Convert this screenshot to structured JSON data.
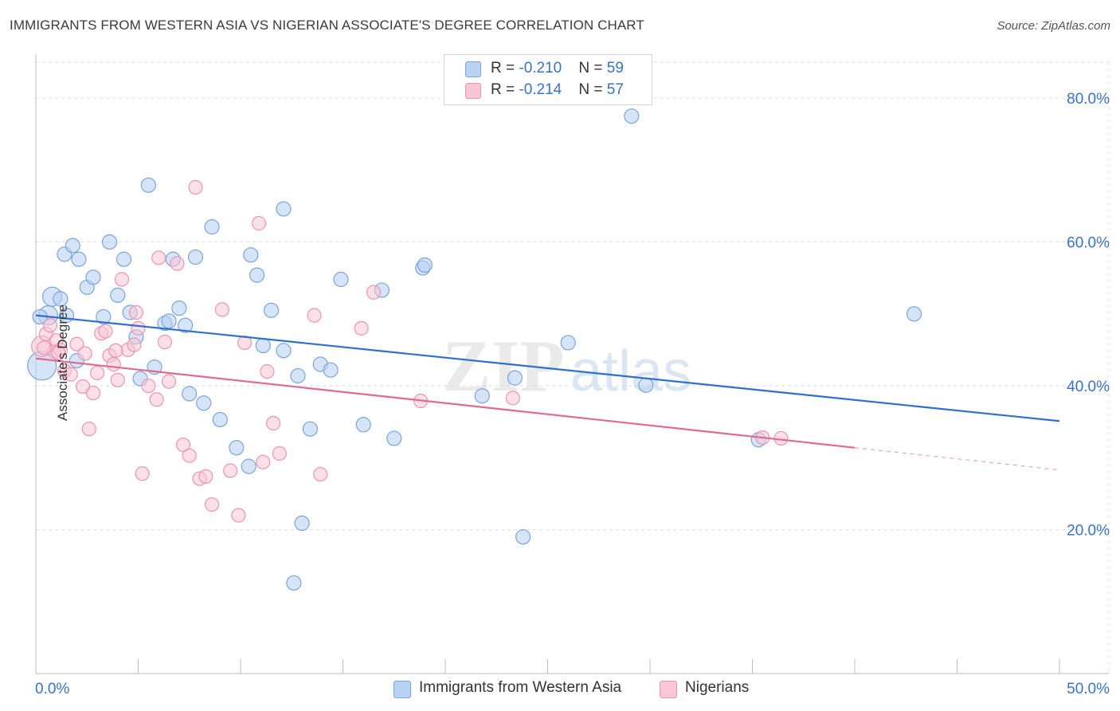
{
  "title": "IMMIGRANTS FROM WESTERN ASIA VS NIGERIAN ASSOCIATE'S DEGREE CORRELATION CHART",
  "source": "Source: ZipAtlas.com",
  "watermark": {
    "zip": "ZIP",
    "atlas": "atlas"
  },
  "legend": {
    "rows": [
      {
        "r_label": "R = ",
        "r_value": "-0.210",
        "n_label": "N = ",
        "n_value": "59"
      },
      {
        "r_label": "R = ",
        "r_value": "-0.214",
        "n_label": "N = ",
        "n_value": "57"
      }
    ]
  },
  "colors": {
    "blue_fill": "#b9d2f2",
    "blue_stroke": "#7aa5dc",
    "blue_line": "#2f6fd0",
    "pink_fill": "#f8c6d6",
    "pink_stroke": "#ec94b3",
    "pink_line": "#e2698f",
    "tick_label": "#3a72c8",
    "grid": "#dddddd"
  },
  "chart_data": {
    "type": "scatter",
    "title": "IMMIGRANTS FROM WESTERN ASIA VS NIGERIAN ASSOCIATE'S DEGREE CORRELATION CHART",
    "xlabel": "",
    "ylabel": "Associate's Degree",
    "xlim": [
      0,
      50
    ],
    "ylim": [
      0,
      85
    ],
    "x_tick_labels": [
      "0.0%",
      "50.0%"
    ],
    "y_ticks": [
      20,
      40,
      60,
      80
    ],
    "y_tick_labels": [
      "20.0%",
      "40.0%",
      "60.0%",
      "80.0%"
    ],
    "grid": true,
    "legend_placement": "top-center and bottom",
    "series": [
      {
        "name": "Immigrants from Western Asia",
        "color": "#7aa5dc",
        "r": -0.21,
        "n": 59,
        "trend": {
          "x": [
            0,
            50
          ],
          "y": [
            49.8,
            35.1
          ]
        },
        "points": [
          [
            0.3,
            42.8
          ],
          [
            0.6,
            49.8
          ],
          [
            0.8,
            52.4
          ],
          [
            1.2,
            52.1
          ],
          [
            1.4,
            58.3
          ],
          [
            1.8,
            59.5
          ],
          [
            2.1,
            57.6
          ],
          [
            2.5,
            53.7
          ],
          [
            2.8,
            55.1
          ],
          [
            3.3,
            49.6
          ],
          [
            3.6,
            60.0
          ],
          [
            4.0,
            52.6
          ],
          [
            4.3,
            57.6
          ],
          [
            4.6,
            50.2
          ],
          [
            4.9,
            46.8
          ],
          [
            5.1,
            41.0
          ],
          [
            5.5,
            67.9
          ],
          [
            5.8,
            42.6
          ],
          [
            6.3,
            48.7
          ],
          [
            6.5,
            49.0
          ],
          [
            6.7,
            57.6
          ],
          [
            7.0,
            50.8
          ],
          [
            7.3,
            48.4
          ],
          [
            7.5,
            38.9
          ],
          [
            7.8,
            57.9
          ],
          [
            8.2,
            37.6
          ],
          [
            8.6,
            62.1
          ],
          [
            9.0,
            35.3
          ],
          [
            9.8,
            31.4
          ],
          [
            10.4,
            28.8
          ],
          [
            10.5,
            58.2
          ],
          [
            10.8,
            55.4
          ],
          [
            11.1,
            45.6
          ],
          [
            11.5,
            50.5
          ],
          [
            12.1,
            44.9
          ],
          [
            12.1,
            64.6
          ],
          [
            12.6,
            12.6
          ],
          [
            12.8,
            41.4
          ],
          [
            13.0,
            20.9
          ],
          [
            13.4,
            34.0
          ],
          [
            13.9,
            43.0
          ],
          [
            14.4,
            42.2
          ],
          [
            14.9,
            54.8
          ],
          [
            16.0,
            34.6
          ],
          [
            16.9,
            53.3
          ],
          [
            17.5,
            32.7
          ],
          [
            18.9,
            56.4
          ],
          [
            19.0,
            56.8
          ],
          [
            21.8,
            38.6
          ],
          [
            23.4,
            41.1
          ],
          [
            23.8,
            19.0
          ],
          [
            26.0,
            46.0
          ],
          [
            29.1,
            77.5
          ],
          [
            29.8,
            40.1
          ],
          [
            35.3,
            32.5
          ],
          [
            42.9,
            50.0
          ],
          [
            0.2,
            49.6
          ],
          [
            1.5,
            49.8
          ],
          [
            2.0,
            43.5
          ]
        ]
      },
      {
        "name": "Nigerians",
        "color": "#ec94b3",
        "r": -0.214,
        "n": 57,
        "trend": {
          "x": [
            0,
            40
          ],
          "y": [
            43.8,
            31.4
          ]
        },
        "trend_dashed": {
          "x": [
            40,
            50
          ],
          "y": [
            31.4,
            28.3
          ]
        },
        "points": [
          [
            0.3,
            45.5
          ],
          [
            0.5,
            47.2
          ],
          [
            0.7,
            48.4
          ],
          [
            0.9,
            44.8
          ],
          [
            1.0,
            46.3
          ],
          [
            1.2,
            45.0
          ],
          [
            1.4,
            42.1
          ],
          [
            1.7,
            41.6
          ],
          [
            2.0,
            45.8
          ],
          [
            2.3,
            39.9
          ],
          [
            2.6,
            34.0
          ],
          [
            2.8,
            39.0
          ],
          [
            3.0,
            41.8
          ],
          [
            3.2,
            47.3
          ],
          [
            3.4,
            47.6
          ],
          [
            3.6,
            44.2
          ],
          [
            3.8,
            43.0
          ],
          [
            4.0,
            40.8
          ],
          [
            4.2,
            54.8
          ],
          [
            4.5,
            45.0
          ],
          [
            4.8,
            45.7
          ],
          [
            4.9,
            50.2
          ],
          [
            5.0,
            48.0
          ],
          [
            5.2,
            27.8
          ],
          [
            5.5,
            40.0
          ],
          [
            5.9,
            38.1
          ],
          [
            6.0,
            57.8
          ],
          [
            6.3,
            46.1
          ],
          [
            6.5,
            40.6
          ],
          [
            6.9,
            57.0
          ],
          [
            7.2,
            31.8
          ],
          [
            7.5,
            30.3
          ],
          [
            7.8,
            67.6
          ],
          [
            8.0,
            27.1
          ],
          [
            8.3,
            27.4
          ],
          [
            8.6,
            23.5
          ],
          [
            9.1,
            50.6
          ],
          [
            9.5,
            28.2
          ],
          [
            9.9,
            22.0
          ],
          [
            10.2,
            46.0
          ],
          [
            10.9,
            62.6
          ],
          [
            11.1,
            29.4
          ],
          [
            11.3,
            42.0
          ],
          [
            11.6,
            34.8
          ],
          [
            11.9,
            30.6
          ],
          [
            13.6,
            49.8
          ],
          [
            13.9,
            27.7
          ],
          [
            15.9,
            48.0
          ],
          [
            16.5,
            53.0
          ],
          [
            18.8,
            37.9
          ],
          [
            23.3,
            38.3
          ],
          [
            35.5,
            32.8
          ],
          [
            36.4,
            32.7
          ],
          [
            0.4,
            45.3
          ],
          [
            1.1,
            44.6
          ],
          [
            2.4,
            44.5
          ],
          [
            3.9,
            44.9
          ]
        ]
      }
    ]
  },
  "bottom_legend": [
    {
      "label": "Immigrants from Western Asia"
    },
    {
      "label": "Nigerians"
    }
  ]
}
